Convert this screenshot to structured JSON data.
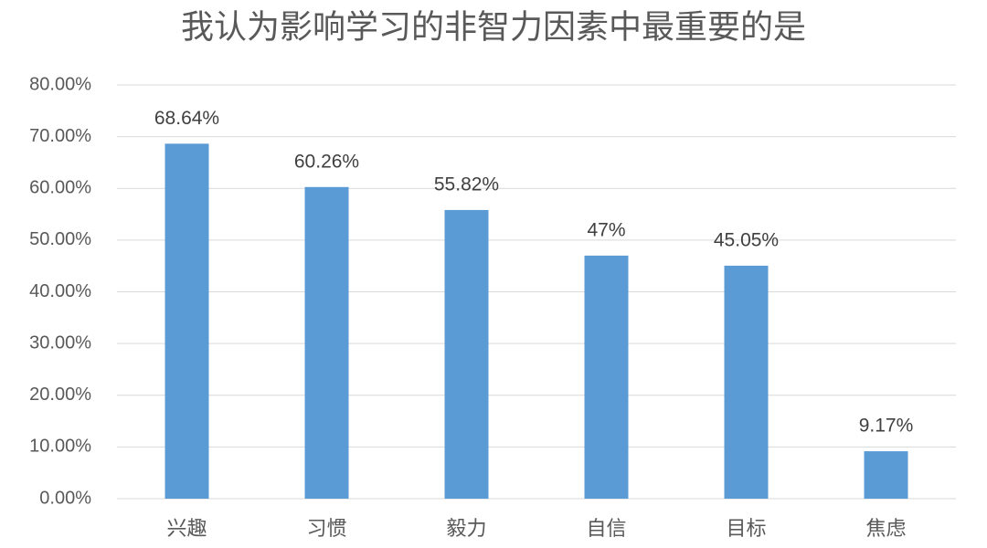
{
  "chart_data": {
    "type": "bar",
    "title": "我认为影响学习的非智力因素中最重要的是",
    "categories": [
      "兴趣",
      "习惯",
      "毅力",
      "自信",
      "目标",
      "焦虑"
    ],
    "values": [
      68.64,
      60.26,
      55.82,
      47,
      45.05,
      9.17
    ],
    "value_labels": [
      "68.64%",
      "60.26%",
      "55.82%",
      "47%",
      "45.05%",
      "9.17%"
    ],
    "color": "#5b9bd5",
    "ylim": [
      0,
      80
    ],
    "yticks": [
      {
        "value": 0,
        "label": "0.00%"
      },
      {
        "value": 10,
        "label": "10.00%"
      },
      {
        "value": 20,
        "label": "20.00%"
      },
      {
        "value": 30,
        "label": "30.00%"
      },
      {
        "value": 40,
        "label": "40.00%"
      },
      {
        "value": 50,
        "label": "50.00%"
      },
      {
        "value": 60,
        "label": "60.00%"
      },
      {
        "value": 70,
        "label": "70.00%"
      },
      {
        "value": 80,
        "label": "80.00%"
      }
    ],
    "grid": true
  }
}
